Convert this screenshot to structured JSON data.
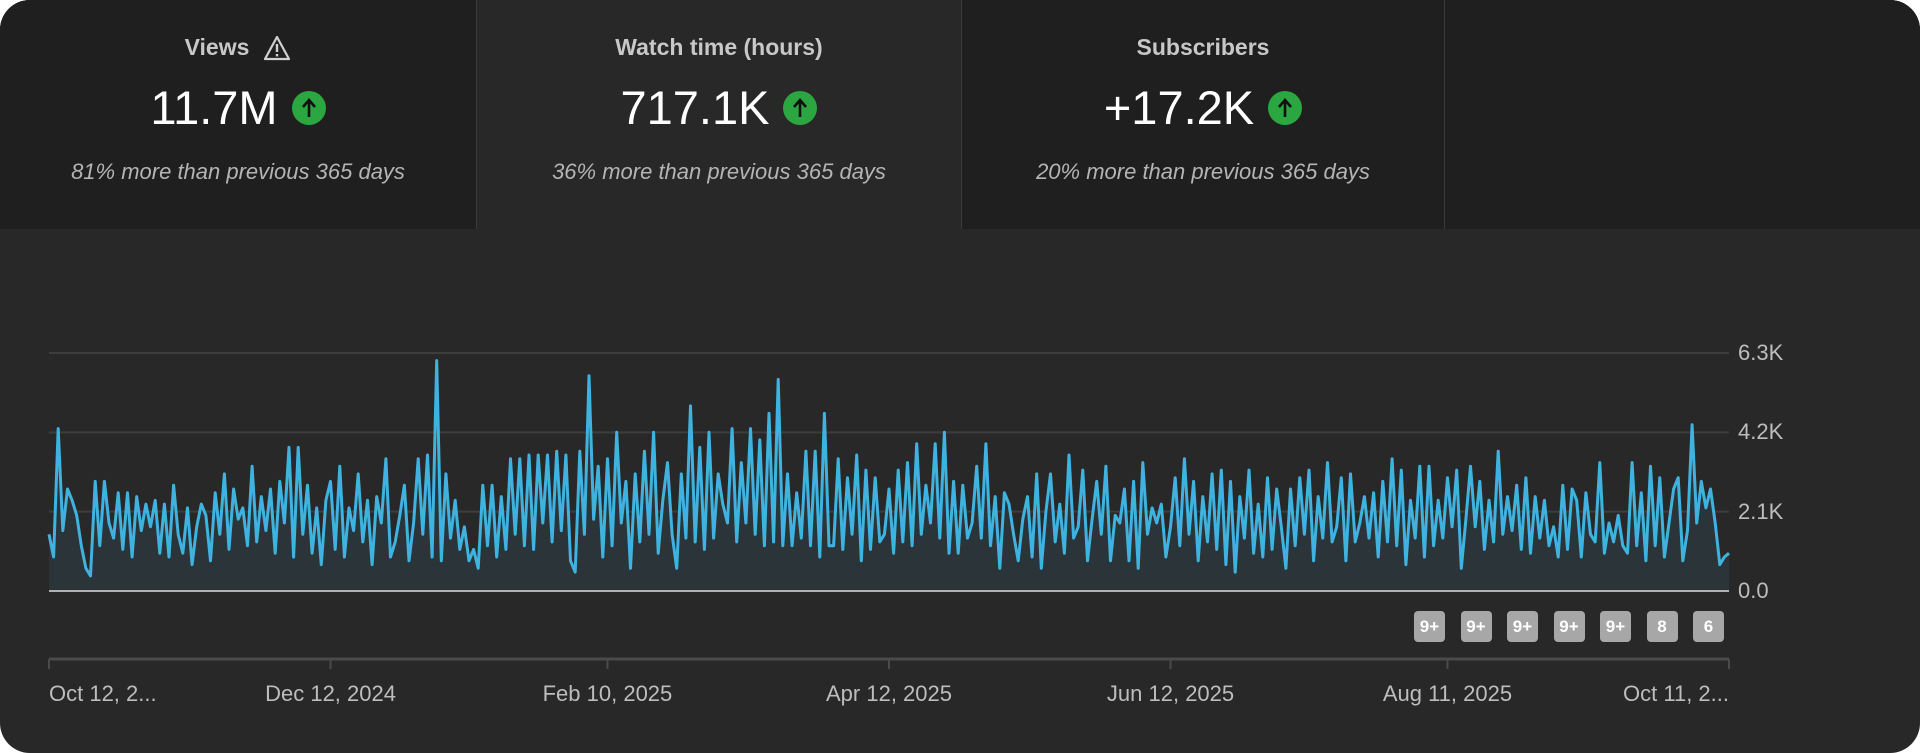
{
  "metrics": [
    {
      "title": "Views",
      "warning_icon": "warning-triangle-icon",
      "value": "11.7M",
      "trend_icon": "arrow-up-circle-icon",
      "comparison": "81% more than previous 365 days",
      "selected": false
    },
    {
      "title": "Watch time (hours)",
      "value": "717.1K",
      "trend_icon": "arrow-up-circle-icon",
      "comparison": "36% more than previous 365 days",
      "selected": true
    },
    {
      "title": "Subscribers",
      "value": "+17.2K",
      "trend_icon": "arrow-up-circle-icon",
      "comparison": "20% more than previous 365 days",
      "selected": false
    }
  ],
  "colors": {
    "line": "#3fb3e0",
    "area": "#2b3439",
    "trend_up": "#2ba640",
    "badge": "#a7a7a7"
  },
  "chart_data": {
    "type": "area",
    "x_start": "Oct 12, 2024",
    "x_end": "Oct 11, 2025",
    "x_interval": "daily",
    "ylim": [
      0,
      6300
    ],
    "y_ticks": [
      0,
      2100,
      4200,
      6300
    ],
    "y_tick_labels": [
      "0.0",
      "2.1K",
      "4.2K",
      "6.3K"
    ],
    "y_axis_position": "right",
    "grid": true,
    "x_tick_labels": [
      "Oct 12, 2...",
      "Dec 12, 2024",
      "Feb 10, 2025",
      "Apr 12, 2025",
      "Jun 12, 2025",
      "Aug 11, 2025",
      "Oct 11, 2..."
    ],
    "x_tick_days": [
      0,
      61,
      121,
      182,
      243,
      303,
      364
    ],
    "values": [
      1500,
      900,
      4300,
      1600,
      2700,
      2400,
      2000,
      1200,
      600,
      400,
      2900,
      1200,
      2900,
      1800,
      1400,
      2600,
      1100,
      2600,
      900,
      2500,
      1600,
      2300,
      1700,
      2400,
      1000,
      2300,
      900,
      2800,
      1500,
      1000,
      2200,
      700,
      1700,
      2300,
      2000,
      800,
      2600,
      1500,
      3100,
      1100,
      2700,
      1900,
      2200,
      1200,
      3300,
      1300,
      2500,
      1600,
      2700,
      1000,
      2900,
      1800,
      3800,
      900,
      3800,
      1500,
      2800,
      1000,
      2200,
      700,
      2400,
      2900,
      1100,
      3300,
      900,
      2200,
      1600,
      3100,
      1300,
      2400,
      700,
      2500,
      1800,
      3500,
      900,
      1300,
      2000,
      2800,
      800,
      1800,
      3500,
      1500,
      3600,
      900,
      6100,
      800,
      3100,
      1400,
      2400,
      1100,
      1700,
      800,
      1100,
      600,
      2800,
      1200,
      2800,
      900,
      2500,
      1100,
      3500,
      1500,
      3500,
      1200,
      3600,
      1100,
      3600,
      1800,
      3600,
      1300,
      3700,
      1600,
      3600,
      800,
      500,
      3700,
      1500,
      5700,
      1900,
      3300,
      900,
      3500,
      1200,
      4200,
      1800,
      2900,
      600,
      3100,
      1300,
      3700,
      1500,
      4200,
      1000,
      2400,
      3400,
      1500,
      600,
      3100,
      1400,
      4900,
      1300,
      3800,
      1100,
      4200,
      1400,
      3100,
      2300,
      1800,
      4300,
      1300,
      3400,
      1800,
      4300,
      1500,
      4000,
      1200,
      4700,
      1300,
      5600,
      1200,
      3100,
      1200,
      2600,
      1400,
      3700,
      1200,
      3700,
      900,
      4700,
      1200,
      1200,
      3500,
      1100,
      3000,
      1500,
      3600,
      800,
      3200,
      1100,
      3000,
      1300,
      1500,
      2700,
      1000,
      3200,
      1300,
      3400,
      1200,
      3900,
      1500,
      2800,
      1800,
      3900,
      1400,
      4200,
      1000,
      2900,
      1000,
      2800,
      1400,
      1800,
      3300,
      1400,
      3900,
      1200,
      2500,
      600,
      2600,
      2300,
      1500,
      800,
      1900,
      2500,
      900,
      3100,
      600,
      2100,
      3100,
      1300,
      2300,
      1000,
      3600,
      1400,
      1700,
      3200,
      800,
      1900,
      2900,
      1500,
      3300,
      800,
      2000,
      1800,
      2700,
      800,
      2900,
      600,
      3400,
      1500,
      2200,
      1800,
      2300,
      900,
      1700,
      3000,
      1200,
      3500,
      1500,
      2900,
      800,
      2500,
      1300,
      3100,
      1100,
      3200,
      700,
      2900,
      500,
      2500,
      1400,
      3200,
      1000,
      2300,
      900,
      3000,
      1100,
      2700,
      1700,
      600,
      2700,
      1200,
      3000,
      1500,
      3200,
      800,
      2500,
      1400,
      3400,
      1300,
      1700,
      3000,
      800,
      3100,
      1300,
      1800,
      2500,
      1400,
      2600,
      900,
      2900,
      1300,
      3500,
      1200,
      3200,
      700,
      2400,
      1400,
      3300,
      900,
      3300,
      1200,
      2400,
      1400,
      3000,
      1700,
      3200,
      600,
      1900,
      3300,
      1700,
      2900,
      1100,
      2400,
      1300,
      3700,
      1500,
      2500,
      1600,
      2800,
      1100,
      3000,
      1000,
      2500,
      1400,
      2400,
      1200,
      1700,
      900,
      2800,
      1100,
      2700,
      2400,
      900,
      2600,
      1500,
      1300,
      3400,
      1000,
      1800,
      1300,
      2000,
      1200,
      1000,
      3400,
      1200,
      2600,
      800,
      3300,
      1200,
      3000,
      900,
      1800,
      2700,
      3000,
      800,
      1600,
      4400,
      1800,
      2900,
      2200,
      2700,
      1800,
      700,
      900,
      1000
    ]
  },
  "markers": [
    "9+",
    "9+",
    "9+",
    "9+",
    "9+",
    "8",
    "6"
  ]
}
